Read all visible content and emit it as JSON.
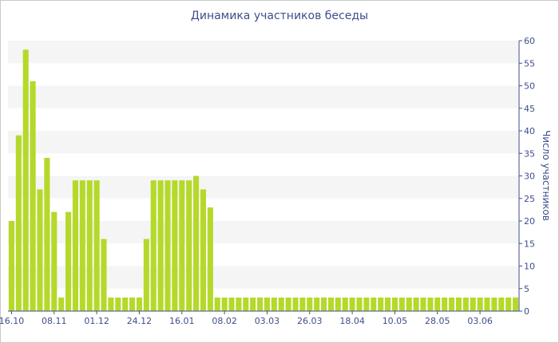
{
  "chart_data": {
    "type": "bar",
    "title": "Динамика участников беседы",
    "xlabel": "",
    "ylabel": "Число участников",
    "ylim": [
      0,
      60
    ],
    "yticks": [
      0,
      5,
      10,
      15,
      20,
      25,
      30,
      35,
      40,
      45,
      50,
      55,
      60
    ],
    "y_axis_side": "right",
    "grid": "alternating horizontal bands",
    "bar_color": "#b5d92a",
    "axis_color": "#3e4e8c",
    "band_color": "#f5f5f5",
    "x_tick_labels": [
      {
        "index": 0,
        "label": "16.10"
      },
      {
        "index": 6,
        "label": "08.11"
      },
      {
        "index": 12,
        "label": "01.12"
      },
      {
        "index": 18,
        "label": "24.12"
      },
      {
        "index": 24,
        "label": "16.01"
      },
      {
        "index": 30,
        "label": "08.02"
      },
      {
        "index": 36,
        "label": "03.03"
      },
      {
        "index": 42,
        "label": "26.03"
      },
      {
        "index": 48,
        "label": "18.04"
      },
      {
        "index": 54,
        "label": "10.05"
      },
      {
        "index": 60,
        "label": "28.05"
      },
      {
        "index": 66,
        "label": "03.06"
      }
    ],
    "values": [
      20,
      39,
      58,
      51,
      27,
      34,
      22,
      3,
      22,
      29,
      29,
      29,
      29,
      16,
      3,
      3,
      3,
      3,
      3,
      16,
      29,
      29,
      29,
      29,
      29,
      29,
      30,
      27,
      23,
      3,
      3,
      3,
      3,
      3,
      3,
      3,
      3,
      3,
      3,
      3,
      3,
      3,
      3,
      3,
      3,
      3,
      3,
      3,
      3,
      3,
      3,
      3,
      3,
      3,
      3,
      3,
      3,
      3,
      3,
      3,
      3,
      3,
      3,
      3,
      3,
      3,
      3,
      3,
      3,
      3,
      3,
      3
    ]
  }
}
